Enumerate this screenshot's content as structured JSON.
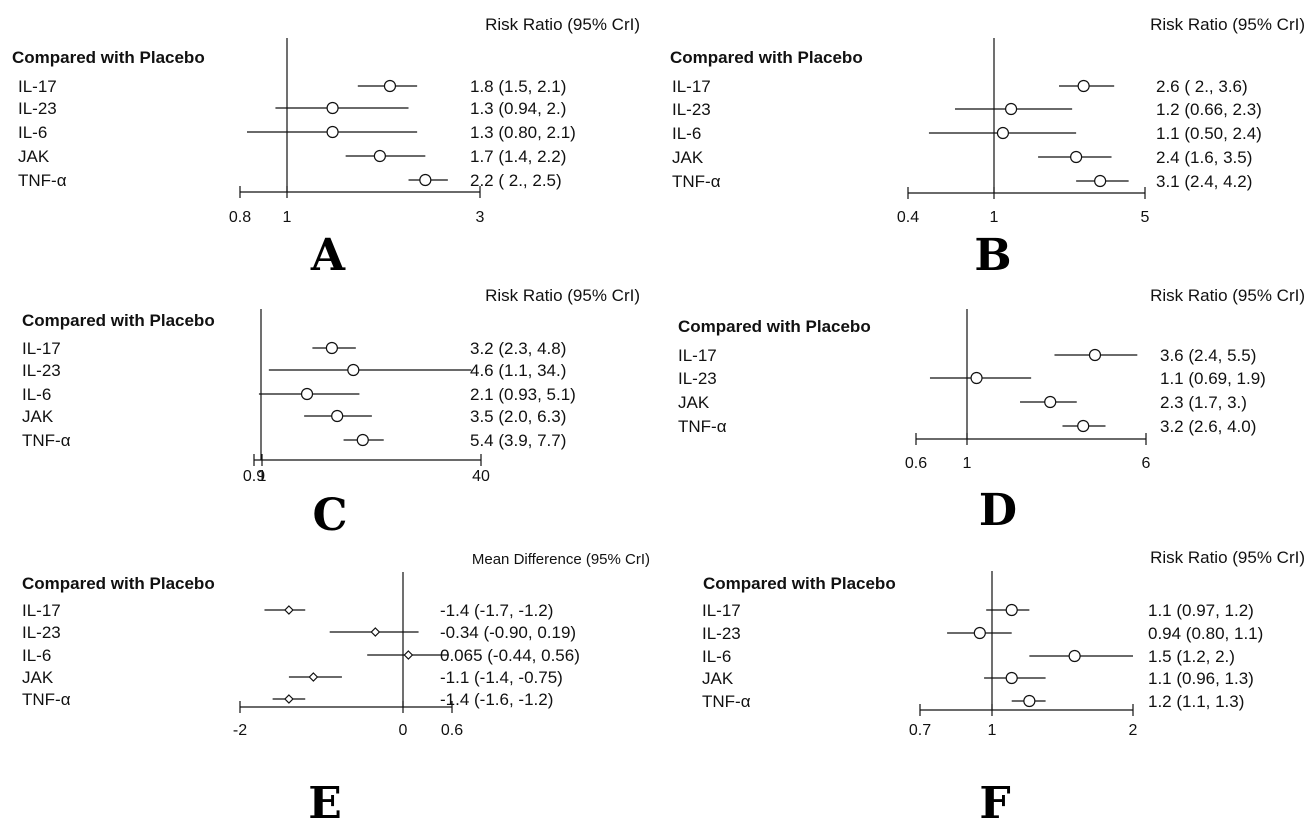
{
  "chart_data": [
    {
      "panel": "A",
      "type": "forest",
      "header": "Risk Ratio (95% CrI)",
      "group_label": "Compared with Placebo",
      "axis_ticks": [
        "0.8",
        "1",
        "3"
      ],
      "xlim": [
        0.8,
        3
      ],
      "reference": 1,
      "rows": [
        {
          "label": "IL-17",
          "estimate": 1.8,
          "low": 1.5,
          "high": 2.1,
          "text": "1.8 (1.5, 2.1)"
        },
        {
          "label": "IL-23",
          "estimate": 1.3,
          "low": 0.94,
          "high": 2.0,
          "text": "1.3 (0.94,  2.)"
        },
        {
          "label": "IL-6",
          "estimate": 1.3,
          "low": 0.8,
          "high": 2.1,
          "text": "1.3 (0.80, 2.1)"
        },
        {
          "label": "JAK",
          "estimate": 1.7,
          "low": 1.4,
          "high": 2.2,
          "text": "1.7 (1.4, 2.2)"
        },
        {
          "label": "TNF-α",
          "estimate": 2.2,
          "low": 2.0,
          "high": 2.5,
          "text": "2.2 ( 2., 2.5)"
        }
      ]
    },
    {
      "panel": "B",
      "type": "forest",
      "header": "Risk Ratio (95% CrI)",
      "group_label": "Compared with Placebo",
      "axis_ticks": [
        "0.4",
        "1",
        "5"
      ],
      "xlim": [
        0.4,
        5
      ],
      "reference": 1,
      "rows": [
        {
          "label": "IL-17",
          "estimate": 2.6,
          "low": 2.0,
          "high": 3.6,
          "text": "2.6 ( 2., 3.6)"
        },
        {
          "label": "IL-23",
          "estimate": 1.2,
          "low": 0.66,
          "high": 2.3,
          "text": "1.2 (0.66, 2.3)"
        },
        {
          "label": "IL-6",
          "estimate": 1.1,
          "low": 0.5,
          "high": 2.4,
          "text": "1.1 (0.50, 2.4)"
        },
        {
          "label": "JAK",
          "estimate": 2.4,
          "low": 1.6,
          "high": 3.5,
          "text": "2.4 (1.6, 3.5)"
        },
        {
          "label": "TNF-α",
          "estimate": 3.1,
          "low": 2.4,
          "high": 4.2,
          "text": "3.1 (2.4, 4.2)"
        }
      ]
    },
    {
      "panel": "C",
      "type": "forest",
      "header": "Risk Ratio (95% CrI)",
      "group_label": "Compared with Placebo",
      "axis_ticks": [
        "0.9",
        "1",
        "40"
      ],
      "xlim": [
        0.9,
        40
      ],
      "reference": 1,
      "rows": [
        {
          "label": "IL-17",
          "estimate": 3.2,
          "low": 2.3,
          "high": 4.8,
          "text": "3.2 (2.3, 4.8)"
        },
        {
          "label": "IL-23",
          "estimate": 4.6,
          "low": 1.1,
          "high": 34,
          "text": "4.6 (1.1,   34.)"
        },
        {
          "label": "IL-6",
          "estimate": 2.1,
          "low": 0.93,
          "high": 5.1,
          "text": "2.1 (0.93, 5.1)"
        },
        {
          "label": "JAK",
          "estimate": 3.5,
          "low": 2.0,
          "high": 6.3,
          "text": "3.5 (2.0, 6.3)"
        },
        {
          "label": "TNF-α",
          "estimate": 5.4,
          "low": 3.9,
          "high": 7.7,
          "text": "5.4 (3.9, 7.7)"
        }
      ]
    },
    {
      "panel": "D",
      "type": "forest",
      "header": "Risk Ratio (95% CrI)",
      "group_label": "Compared with Placebo",
      "axis_ticks": [
        "0.6",
        "1",
        "6"
      ],
      "xlim": [
        0.6,
        6
      ],
      "reference": 1,
      "rows": [
        {
          "label": "IL-17",
          "estimate": 3.6,
          "low": 2.4,
          "high": 5.5,
          "text": "3.6 (2.4, 5.5)"
        },
        {
          "label": "IL-23",
          "estimate": 1.1,
          "low": 0.69,
          "high": 1.9,
          "text": "1.1 (0.69, 1.9)"
        },
        {
          "label": "JAK",
          "estimate": 2.3,
          "low": 1.7,
          "high": 3.0,
          "text": "2.3 (1.7,  3.)"
        },
        {
          "label": "TNF-α",
          "estimate": 3.2,
          "low": 2.6,
          "high": 4.0,
          "text": "3.2 (2.6, 4.0)"
        }
      ]
    },
    {
      "panel": "E",
      "type": "forest",
      "header": "Mean Difference (95% CrI)",
      "group_label": "Compared with Placebo",
      "axis_ticks": [
        "-2",
        "0",
        "0.6"
      ],
      "xlim": [
        -2,
        0.6
      ],
      "reference": 0,
      "rows": [
        {
          "label": "IL-17",
          "estimate": -1.4,
          "low": -1.7,
          "high": -1.2,
          "text": "-1.4 (-1.7, -1.2)"
        },
        {
          "label": "IL-23",
          "estimate": -0.34,
          "low": -0.9,
          "high": 0.19,
          "text": "-0.34 (-0.90, 0.19)"
        },
        {
          "label": "IL-6",
          "estimate": 0.065,
          "low": -0.44,
          "high": 0.56,
          "text": "0.065 (-0.44, 0.56)"
        },
        {
          "label": "JAK",
          "estimate": -1.1,
          "low": -1.4,
          "high": -0.75,
          "text": "-1.1 (-1.4, -0.75)"
        },
        {
          "label": "TNF-α",
          "estimate": -1.4,
          "low": -1.6,
          "high": -1.2,
          "text": "-1.4 (-1.6, -1.2)"
        }
      ]
    },
    {
      "panel": "F",
      "type": "forest",
      "header": "Risk Ratio (95% CrI)",
      "group_label": "Compared with Placebo",
      "axis_ticks": [
        "0.7",
        "1",
        "2"
      ],
      "xlim": [
        0.7,
        2
      ],
      "reference": 1,
      "rows": [
        {
          "label": "IL-17",
          "estimate": 1.1,
          "low": 0.97,
          "high": 1.2,
          "text": "1.1 (0.97, 1.2)"
        },
        {
          "label": "IL-23",
          "estimate": 0.94,
          "low": 0.8,
          "high": 1.1,
          "text": "0.94 (0.80, 1.1)"
        },
        {
          "label": "IL-6",
          "estimate": 1.5,
          "low": 1.2,
          "high": 2.0,
          "text": "1.5 (1.2,  2.)"
        },
        {
          "label": "JAK",
          "estimate": 1.1,
          "low": 0.96,
          "high": 1.3,
          "text": "1.1 (0.96, 1.3)"
        },
        {
          "label": "TNF-α",
          "estimate": 1.2,
          "low": 1.1,
          "high": 1.3,
          "text": "1.2 (1.1, 1.3)"
        }
      ]
    }
  ]
}
